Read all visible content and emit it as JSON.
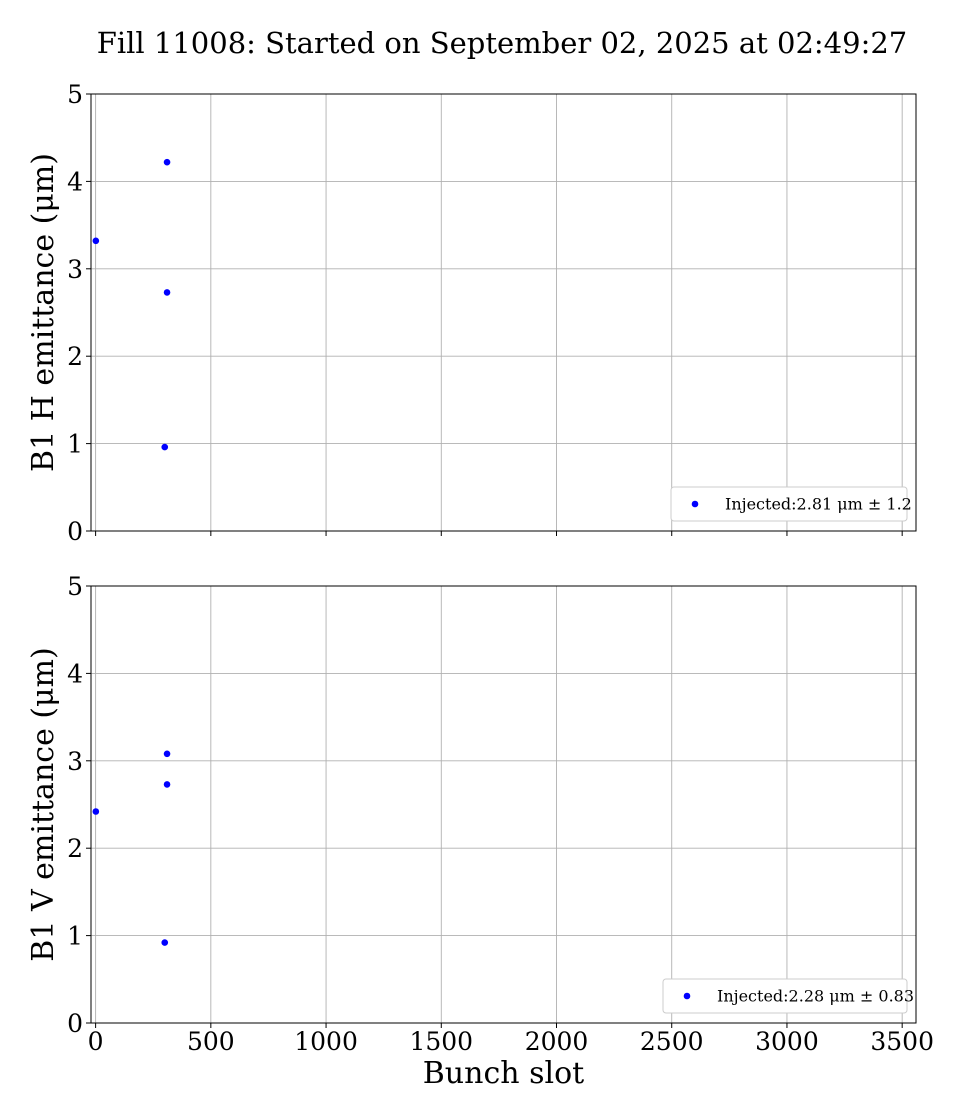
{
  "title": "Fill 11008: Started on September 02, 2025 at 02:49:27",
  "colors": {
    "marker": "#0000ff",
    "grid": "#b0b0b0",
    "axis": "#000000"
  },
  "chart_data": [
    {
      "type": "scatter",
      "ylabel": "B1 H emittance (μm)",
      "xlabel": "",
      "xlim": [
        -20,
        3560
      ],
      "ylim": [
        0,
        5
      ],
      "xticks": [
        0,
        500,
        1000,
        1500,
        2000,
        2500,
        3000,
        3500
      ],
      "xtick_labels_visible": false,
      "yticks": [
        0,
        1,
        2,
        3,
        4,
        5
      ],
      "grid": true,
      "legend_position": "lower-right",
      "series": [
        {
          "name": "Injected:2.81 μm ± 1.2",
          "x": [
            1,
            300,
            310,
            310
          ],
          "y": [
            3.32,
            0.96,
            2.73,
            4.22
          ]
        }
      ]
    },
    {
      "type": "scatter",
      "ylabel": "B1 V emittance (μm)",
      "xlabel": "Bunch slot",
      "xlim": [
        -20,
        3560
      ],
      "ylim": [
        0,
        5
      ],
      "xticks": [
        0,
        500,
        1000,
        1500,
        2000,
        2500,
        3000,
        3500
      ],
      "xtick_labels_visible": true,
      "yticks": [
        0,
        1,
        2,
        3,
        4,
        5
      ],
      "grid": true,
      "legend_position": "lower-right",
      "series": [
        {
          "name": "Injected:2.28 μm ± 0.83",
          "x": [
            1,
            300,
            310,
            310
          ],
          "y": [
            2.42,
            0.92,
            2.73,
            3.08
          ]
        }
      ]
    }
  ]
}
